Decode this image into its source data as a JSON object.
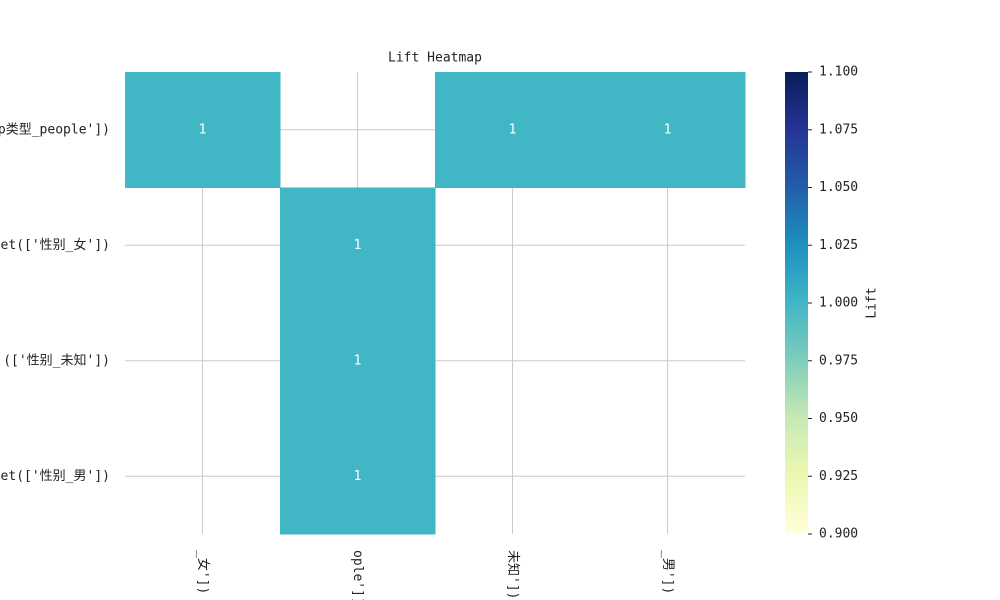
{
  "chart_data": {
    "type": "heatmap",
    "title": "Lift Heatmap",
    "row_labels": [
      "p类型_people'])",
      "et(['性别_女'])",
      "(['性别_未知'])",
      "et(['性别_男'])"
    ],
    "categories": [
      "_女'])",
      "ople'])",
      "未知'])",
      "_男'])"
    ],
    "values": [
      [
        1,
        null,
        1,
        1
      ],
      [
        null,
        1,
        null,
        null
      ],
      [
        null,
        1,
        null,
        null
      ],
      [
        null,
        1,
        null,
        null
      ]
    ],
    "colormap": "YlGnBu",
    "colorbar_label": "Lift",
    "clim": [
      0.9,
      1.1
    ],
    "cticks": [
      {
        "value": 0.9,
        "label": "0.900"
      },
      {
        "value": 0.925,
        "label": "0.925"
      },
      {
        "value": 0.95,
        "label": "0.950"
      },
      {
        "value": 0.975,
        "label": "0.975"
      },
      {
        "value": 1.0,
        "label": "1.000"
      },
      {
        "value": 1.025,
        "label": "1.025"
      },
      {
        "value": 1.05,
        "label": "1.050"
      },
      {
        "value": 1.075,
        "label": "1.075"
      },
      {
        "value": 1.1,
        "label": "1.100"
      }
    ],
    "grid": true
  }
}
